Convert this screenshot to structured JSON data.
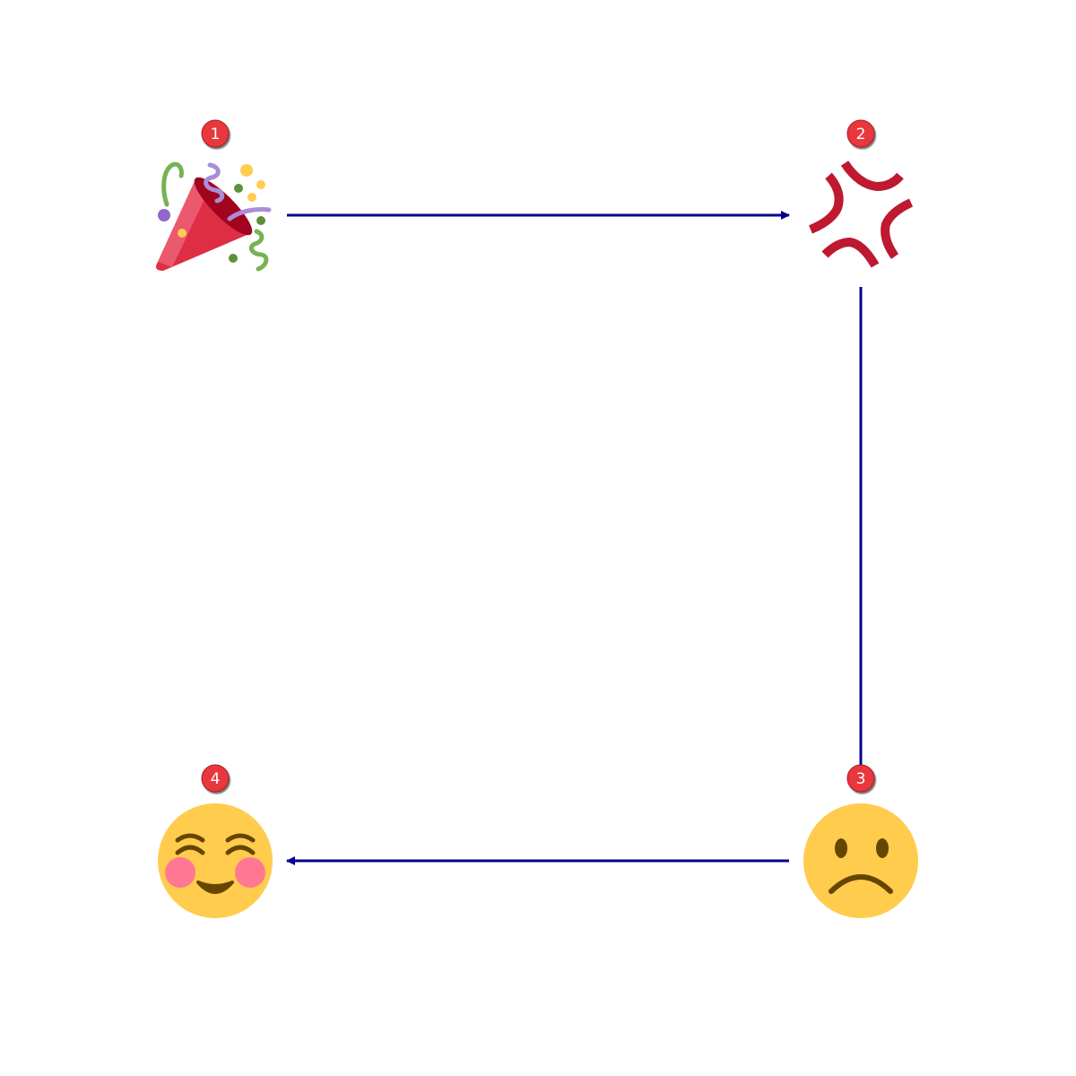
{
  "diagram": {
    "nodes": [
      {
        "id": "n1",
        "step": "1",
        "icon": "party-popper-icon"
      },
      {
        "id": "n2",
        "step": "2",
        "icon": "anger-symbol-icon"
      },
      {
        "id": "n3",
        "step": "3",
        "icon": "slightly-frowning-face-icon"
      },
      {
        "id": "n4",
        "step": "4",
        "icon": "smiling-face-icon"
      }
    ],
    "edges": [
      {
        "from": "n1",
        "to": "n2"
      },
      {
        "from": "n2",
        "to": "n3"
      },
      {
        "from": "n3",
        "to": "n4"
      }
    ],
    "colors": {
      "connector": "#00008b",
      "badge": "#e8383d",
      "badge_text": "#ffffff"
    }
  }
}
